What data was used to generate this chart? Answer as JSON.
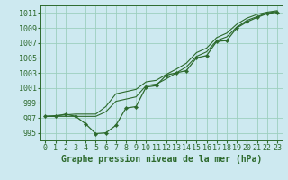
{
  "background_color": "#cde9f0",
  "grid_color": "#9dcfbe",
  "line_color": "#2d6a2d",
  "xlabel": "Graphe pression niveau de la mer (hPa)",
  "xlabel_fontsize": 7,
  "tick_fontsize": 6,
  "xlim": [
    -0.5,
    23.5
  ],
  "ylim": [
    994.0,
    1012.0
  ],
  "yticks": [
    995,
    997,
    999,
    1001,
    1003,
    1005,
    1007,
    1009,
    1011
  ],
  "xticks": [
    0,
    1,
    2,
    3,
    4,
    5,
    6,
    7,
    8,
    9,
    10,
    11,
    12,
    13,
    14,
    15,
    16,
    17,
    18,
    19,
    20,
    21,
    22,
    23
  ],
  "line_dip_x": [
    0,
    1,
    2,
    3,
    4,
    5,
    6,
    7,
    8,
    9,
    10,
    11,
    12,
    13,
    14,
    15,
    16,
    17,
    18,
    19,
    20,
    21,
    22,
    23
  ],
  "line_dip_y": [
    997.2,
    997.2,
    997.5,
    997.2,
    996.2,
    994.9,
    995.0,
    996.0,
    998.3,
    998.5,
    1001.1,
    1001.3,
    1002.7,
    1003.0,
    1003.3,
    1005.0,
    1005.3,
    1007.2,
    1007.3,
    1009.0,
    1009.8,
    1010.4,
    1010.9,
    1011.1
  ],
  "line_mid_x": [
    0,
    3,
    4,
    5,
    6,
    7,
    8,
    9,
    10,
    11,
    12,
    13,
    14,
    15,
    16,
    17,
    18,
    19,
    20,
    21,
    22,
    23
  ],
  "line_mid_y": [
    997.2,
    997.2,
    997.2,
    997.2,
    997.8,
    999.2,
    999.5,
    999.8,
    1001.3,
    1001.5,
    1002.2,
    1003.0,
    1003.8,
    1005.2,
    1005.8,
    1007.3,
    1007.8,
    1009.1,
    1010.0,
    1010.5,
    1011.0,
    1011.2
  ],
  "line_top_x": [
    0,
    3,
    4,
    5,
    6,
    7,
    8,
    9,
    10,
    11,
    12,
    13,
    14,
    15,
    16,
    17,
    18,
    19,
    20,
    21,
    22,
    23
  ],
  "line_top_y": [
    997.2,
    997.5,
    997.5,
    997.5,
    998.5,
    1000.2,
    1000.5,
    1000.8,
    1001.8,
    1002.0,
    1002.8,
    1003.5,
    1004.3,
    1005.7,
    1006.3,
    1007.7,
    1008.3,
    1009.5,
    1010.3,
    1010.8,
    1011.1,
    1011.3
  ]
}
